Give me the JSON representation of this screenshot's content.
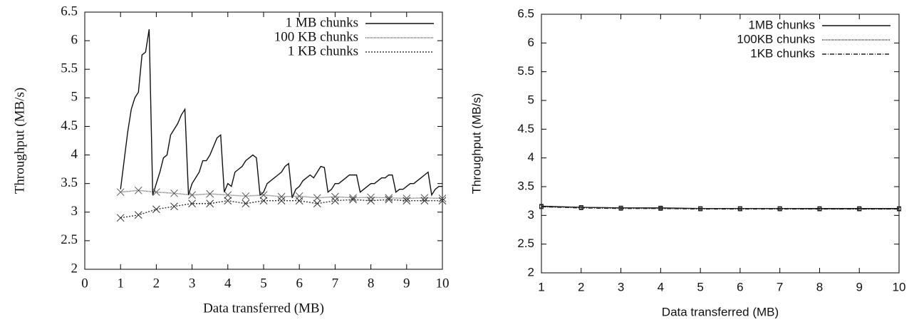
{
  "chart_data": [
    {
      "type": "line",
      "xlabel": "Data transferred (MB)",
      "ylabel": "Throughput (MB/s)",
      "xlim": [
        0,
        10
      ],
      "ylim": [
        2,
        6.5
      ],
      "xticks": [
        0,
        1,
        2,
        3,
        4,
        5,
        6,
        7,
        8,
        9,
        10
      ],
      "yticks": [
        2,
        2.5,
        3,
        3.5,
        4,
        4.5,
        5,
        5.5,
        6,
        6.5
      ],
      "legend": "upper right",
      "series": [
        {
          "name": "1 MB chunks",
          "color": "#111111",
          "dash": "none",
          "marker": "none",
          "x": [
            1,
            1.1,
            1.2,
            1.3,
            1.4,
            1.5,
            1.6,
            1.7,
            1.8,
            1.9,
            2,
            2.1,
            2.2,
            2.3,
            2.4,
            2.5,
            2.6,
            2.7,
            2.8,
            2.9,
            3,
            3.1,
            3.2,
            3.3,
            3.4,
            3.5,
            3.6,
            3.7,
            3.8,
            3.9,
            4,
            4.1,
            4.2,
            4.3,
            4.4,
            4.5,
            4.6,
            4.7,
            4.8,
            4.9,
            5,
            5.1,
            5.2,
            5.3,
            5.4,
            5.5,
            5.6,
            5.7,
            5.8,
            5.9,
            6,
            6.1,
            6.2,
            6.3,
            6.4,
            6.5,
            6.6,
            6.7,
            6.8,
            6.9,
            7,
            7.1,
            7.2,
            7.3,
            7.4,
            7.5,
            7.6,
            7.7,
            7.8,
            7.9,
            8,
            8.1,
            8.2,
            8.3,
            8.4,
            8.5,
            8.6,
            8.7,
            8.8,
            8.9,
            9,
            9.1,
            9.2,
            9.3,
            9.4,
            9.5,
            9.6,
            9.7,
            9.8,
            9.9,
            10
          ],
          "values": [
            3.4,
            3.9,
            4.4,
            4.8,
            5.0,
            5.1,
            5.75,
            5.8,
            6.2,
            3.3,
            3.5,
            3.7,
            3.95,
            4.0,
            4.35,
            4.45,
            4.55,
            4.7,
            4.8,
            3.3,
            3.5,
            3.6,
            3.7,
            3.9,
            3.9,
            4.0,
            4.15,
            4.3,
            4.35,
            3.35,
            3.5,
            3.45,
            3.7,
            3.75,
            3.8,
            3.9,
            3.95,
            4.0,
            3.95,
            3.3,
            3.35,
            3.5,
            3.55,
            3.6,
            3.65,
            3.7,
            3.8,
            3.85,
            3.25,
            3.4,
            3.45,
            3.55,
            3.6,
            3.65,
            3.6,
            3.7,
            3.8,
            3.78,
            3.35,
            3.4,
            3.5,
            3.5,
            3.55,
            3.6,
            3.65,
            3.65,
            3.65,
            3.35,
            3.4,
            3.45,
            3.5,
            3.5,
            3.55,
            3.6,
            3.6,
            3.65,
            3.65,
            3.35,
            3.4,
            3.4,
            3.45,
            3.5,
            3.5,
            3.55,
            3.6,
            3.65,
            3.7,
            3.3,
            3.4,
            3.45,
            3.45
          ]
        },
        {
          "name": "100 KB chunks",
          "color": "#555555",
          "dash": "1 1",
          "marker": "x",
          "x": [
            1,
            1.5,
            2,
            2.5,
            3,
            3.5,
            4,
            4.5,
            5,
            5.5,
            6,
            6.5,
            7,
            7.5,
            8,
            8.5,
            9,
            9.5,
            10
          ],
          "values": [
            3.35,
            3.38,
            3.35,
            3.33,
            3.3,
            3.32,
            3.3,
            3.28,
            3.3,
            3.27,
            3.28,
            3.25,
            3.27,
            3.25,
            3.26,
            3.25,
            3.24,
            3.25,
            3.24
          ]
        },
        {
          "name": "1 KB chunks",
          "color": "#333333",
          "dash": "2 2",
          "marker": "x",
          "x": [
            1,
            1.5,
            2,
            2.5,
            3,
            3.5,
            4,
            4.5,
            5,
            5.5,
            6,
            6.5,
            7,
            7.5,
            8,
            8.5,
            9,
            9.5,
            10
          ],
          "values": [
            2.9,
            2.95,
            3.05,
            3.1,
            3.15,
            3.15,
            3.2,
            3.15,
            3.2,
            3.2,
            3.2,
            3.15,
            3.2,
            3.22,
            3.2,
            3.22,
            3.2,
            3.2,
            3.2
          ]
        }
      ]
    },
    {
      "type": "line",
      "xlabel": "Data transferred (MB)",
      "ylabel": "Throughput (MB/s)",
      "xlim": [
        1,
        10
      ],
      "ylim": [
        2,
        6.5
      ],
      "xticks": [
        1,
        2,
        3,
        4,
        5,
        6,
        7,
        8,
        9,
        10
      ],
      "yticks": [
        2,
        2.5,
        3,
        3.5,
        4,
        4.5,
        5,
        5.5,
        6,
        6.5
      ],
      "legend": "upper right",
      "series": [
        {
          "name": "1MB chunks",
          "color": "#111111",
          "dash": "none",
          "marker": "square",
          "x": [
            1,
            2,
            3,
            4,
            5,
            6,
            7,
            8,
            9,
            10
          ],
          "values": [
            3.16,
            3.14,
            3.13,
            3.13,
            3.12,
            3.12,
            3.12,
            3.12,
            3.12,
            3.12
          ]
        },
        {
          "name": "100KB chunks",
          "color": "#333333",
          "dash": "1 1",
          "marker": "square",
          "x": [
            1,
            2,
            3,
            4,
            5,
            6,
            7,
            8,
            9,
            10
          ],
          "values": [
            3.15,
            3.14,
            3.13,
            3.12,
            3.12,
            3.12,
            3.12,
            3.11,
            3.11,
            3.11
          ]
        },
        {
          "name": "1KB chunks",
          "color": "#222222",
          "dash": "6 2 1 2",
          "marker": "square",
          "x": [
            1,
            2,
            3,
            4,
            5,
            6,
            7,
            8,
            9,
            10
          ],
          "values": [
            3.15,
            3.13,
            3.12,
            3.12,
            3.11,
            3.11,
            3.11,
            3.11,
            3.11,
            3.11
          ]
        }
      ]
    }
  ]
}
